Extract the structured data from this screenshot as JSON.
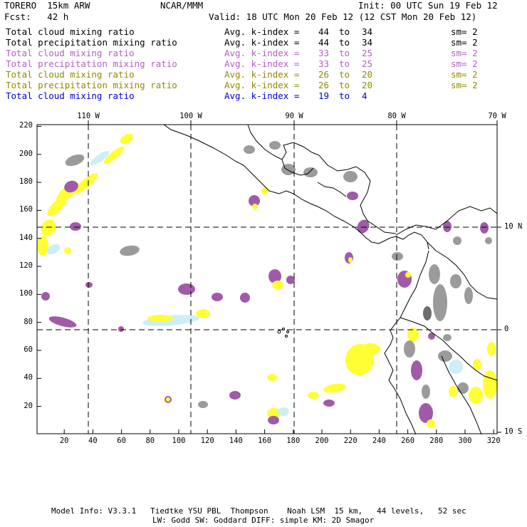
{
  "header": {
    "model": "TORERO  15km ARW",
    "org": "NCAR/MMM",
    "init": "Init: 00 UTC Sun 19 Feb 12",
    "fcst": "Fcst:   42 h",
    "valid": "Valid: 18 UTC Mon 20 Feb 12 (12 CST Mon 20 Feb 12)"
  },
  "legend": [
    {
      "field": "Total cloud mixing ratio",
      "kidx": "Avg. k-index =",
      "lo": "44",
      "to": "to",
      "hi": "34",
      "sm": "sm= 2",
      "color": "#000000"
    },
    {
      "field": "Total precipitation mixing ratio",
      "kidx": "Avg. k-index =",
      "lo": "44",
      "to": "to",
      "hi": "34",
      "sm": "sm= 2",
      "color": "#000000"
    },
    {
      "field": "Total cloud mixing ratio",
      "kidx": "Avg. k-index =",
      "lo": "33",
      "to": "to",
      "hi": "25",
      "sm": "sm= 2",
      "color": "#b45fc0"
    },
    {
      "field": "Total precipitation mixing ratio",
      "kidx": "Avg. k-index =",
      "lo": "33",
      "to": "to",
      "hi": "25",
      "sm": "sm= 2",
      "color": "#b45fc0"
    },
    {
      "field": "Total cloud mixing ratio",
      "kidx": "Avg. k-index =",
      "lo": "26",
      "to": "to",
      "hi": "20",
      "sm": "sm= 2",
      "color": "#8c8c00"
    },
    {
      "field": "Total precipitation mixing ratio",
      "kidx": "Avg. k-index =",
      "lo": "26",
      "to": "to",
      "hi": "20",
      "sm": "sm= 2",
      "color": "#8c8c00"
    },
    {
      "field": "Total cloud mixing ratio",
      "kidx": "Avg. k-index =",
      "lo": "19",
      "to": "to",
      "hi": "4",
      "sm": "",
      "color": "#0000d0"
    }
  ],
  "map": {
    "lon_labels": [
      "110 W",
      "100 W",
      "90 W",
      "80 W",
      "70 W"
    ],
    "lat_labels": [
      "10 N",
      "0",
      "10 S"
    ],
    "y_ticks": [
      "20",
      "40",
      "60",
      "80",
      "100",
      "120",
      "140",
      "160",
      "180",
      "200",
      "220"
    ],
    "x_ticks": [
      "20",
      "40",
      "60",
      "80",
      "100",
      "120",
      "140",
      "160",
      "180",
      "200",
      "220",
      "240",
      "260",
      "280",
      "300",
      "320"
    ]
  },
  "colors": {
    "purple": "#a15aa8",
    "yellow": "#ffff33",
    "gray": "#9b9b9b",
    "dark_gray": "#6e6e6e",
    "light_blue": "#cdeef8"
  },
  "footer": {
    "line1": "Model Info: V3.3.1   Tiedtke YSU PBL  Thompson    Noah LSM  15 km,   44 levels,   52 sec",
    "line2": "LW: Godd SW: Goddard DIFF: simple KM: 2D Smagor"
  }
}
